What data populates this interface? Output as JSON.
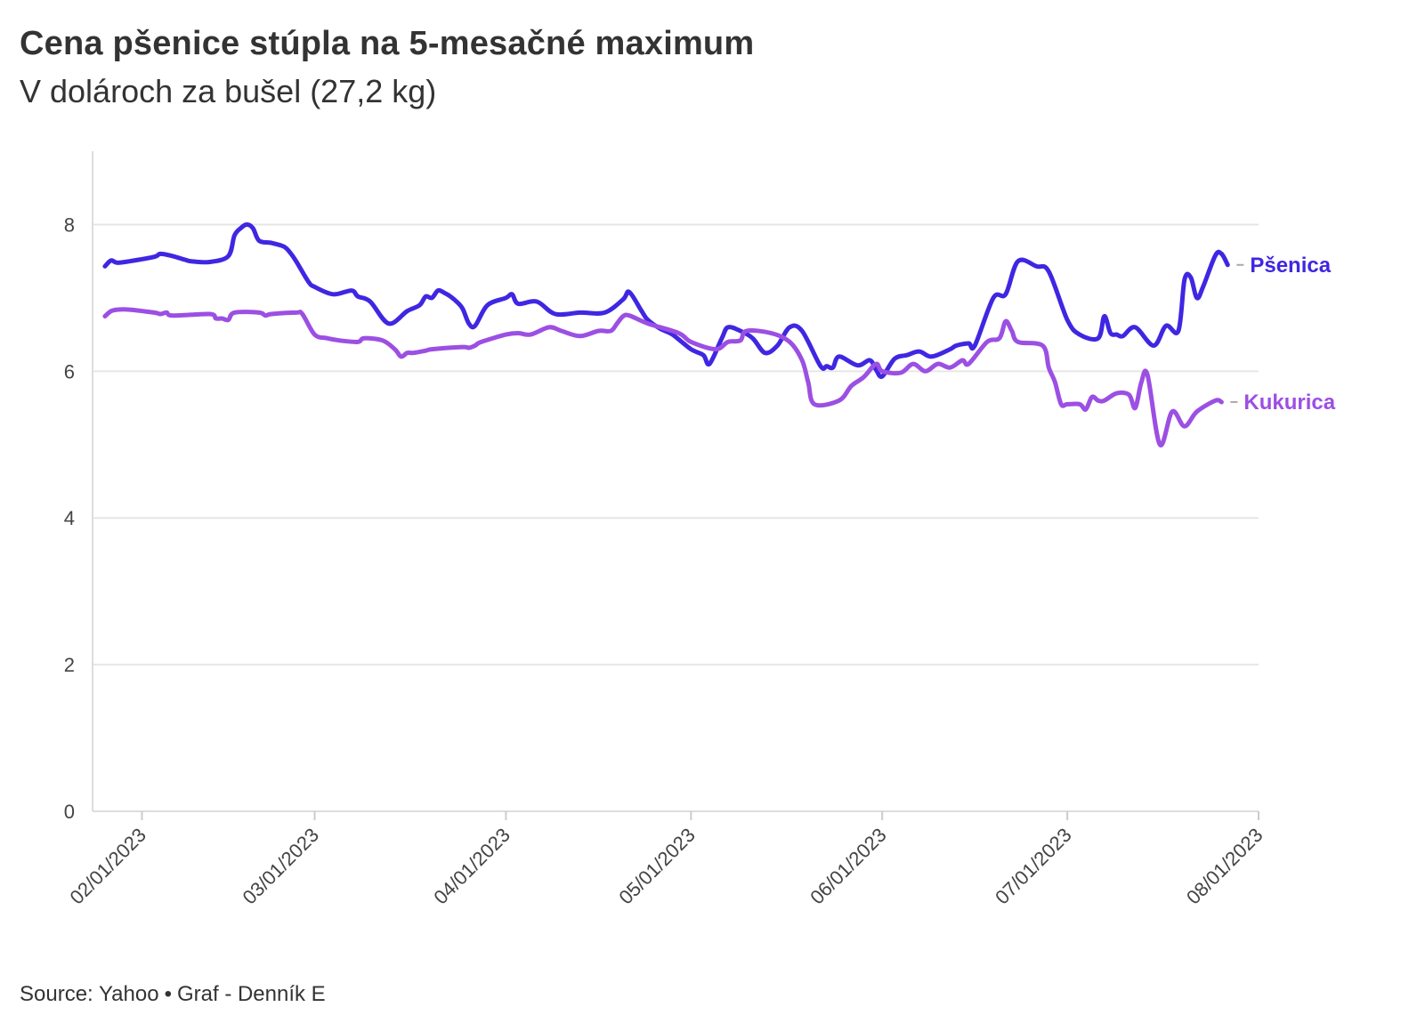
{
  "title": "Cena pšenice stúpla na 5-mesačné maximum",
  "subtitle": "V dolároch za bušel (27,2 kg)",
  "source": {
    "text": "Source: Yahoo",
    "separator": "•",
    "credit": "Graf - Denník E"
  },
  "chart_data": {
    "type": "line",
    "title": "Cena pšenice stúpla na 5-mesačné maximum",
    "subtitle": "V dolároch za bušel (27,2 kg)",
    "xlabel": "",
    "ylabel": "",
    "xlim": [
      "2023-01-24",
      "2023-08-01"
    ],
    "ylim": [
      0,
      9
    ],
    "yticks": [
      0,
      2,
      4,
      6,
      8
    ],
    "xticks": [
      "02/01/2023",
      "03/01/2023",
      "04/01/2023",
      "05/01/2023",
      "06/01/2023",
      "07/01/2023",
      "08/01/2023"
    ],
    "grid": true,
    "legend": "line-end labels",
    "series": [
      {
        "name": "Pšenica",
        "color": "#3f27e2",
        "x": [
          "2023-01-26",
          "2023-01-27",
          "2023-01-28",
          "2023-01-30",
          "2023-02-03",
          "2023-02-04",
          "2023-02-06",
          "2023-02-08",
          "2023-02-09",
          "2023-02-12",
          "2023-02-15",
          "2023-02-16",
          "2023-02-17",
          "2023-02-18",
          "2023-02-19",
          "2023-02-20",
          "2023-02-22",
          "2023-02-24",
          "2023-02-25",
          "2023-02-26",
          "2023-02-28",
          "2023-03-01",
          "2023-03-04",
          "2023-03-07",
          "2023-03-08",
          "2023-03-10",
          "2023-03-13",
          "2023-03-16",
          "2023-03-18",
          "2023-03-19",
          "2023-03-20",
          "2023-03-21",
          "2023-03-22",
          "2023-03-23",
          "2023-03-24",
          "2023-03-25",
          "2023-03-26",
          "2023-03-27",
          "2023-03-29",
          "2023-04-01",
          "2023-04-02",
          "2023-04-03",
          "2023-04-06",
          "2023-04-09",
          "2023-04-13",
          "2023-04-17",
          "2023-04-20",
          "2023-04-21",
          "2023-04-23",
          "2023-04-24",
          "2023-04-26",
          "2023-04-28",
          "2023-05-01",
          "2023-05-03",
          "2023-05-04",
          "2023-05-06",
          "2023-05-07",
          "2023-05-09",
          "2023-05-11",
          "2023-05-13",
          "2023-05-15",
          "2023-05-17",
          "2023-05-19",
          "2023-05-22",
          "2023-05-23",
          "2023-05-24",
          "2023-05-25",
          "2023-05-28",
          "2023-05-30",
          "2023-05-31",
          "2023-06-01",
          "2023-06-03",
          "2023-06-05",
          "2023-06-07",
          "2023-06-09",
          "2023-06-12",
          "2023-06-13",
          "2023-06-15",
          "2023-06-16",
          "2023-06-19",
          "2023-06-21",
          "2023-06-23",
          "2023-06-26",
          "2023-06-28",
          "2023-07-01",
          "2023-07-03",
          "2023-07-06",
          "2023-07-07",
          "2023-07-08",
          "2023-07-09",
          "2023-07-10",
          "2023-07-12",
          "2023-07-15",
          "2023-07-17",
          "2023-07-19",
          "2023-07-20",
          "2023-07-21",
          "2023-07-22",
          "2023-07-23",
          "2023-07-25",
          "2023-07-26",
          "2023-07-27"
        ],
        "values": [
          7.43,
          7.51,
          7.48,
          7.5,
          7.56,
          7.6,
          7.57,
          7.52,
          7.5,
          7.49,
          7.57,
          7.85,
          7.95,
          8.0,
          7.95,
          7.78,
          7.75,
          7.7,
          7.62,
          7.5,
          7.22,
          7.15,
          7.05,
          7.1,
          7.02,
          6.95,
          6.65,
          6.82,
          6.9,
          7.02,
          7.0,
          7.1,
          7.07,
          7.02,
          6.95,
          6.85,
          6.65,
          6.62,
          6.9,
          7.0,
          7.05,
          6.92,
          6.95,
          6.78,
          6.8,
          6.8,
          6.98,
          7.08,
          6.82,
          6.7,
          6.58,
          6.5,
          6.3,
          6.22,
          6.1,
          6.45,
          6.6,
          6.55,
          6.45,
          6.25,
          6.35,
          6.6,
          6.55,
          6.07,
          6.07,
          6.05,
          6.2,
          6.08,
          6.15,
          6.02,
          5.93,
          6.17,
          6.22,
          6.27,
          6.2,
          6.3,
          6.35,
          6.38,
          6.35,
          7.0,
          7.05,
          7.5,
          7.43,
          7.36,
          6.7,
          6.5,
          6.45,
          6.75,
          6.52,
          6.5,
          6.48,
          6.6,
          6.35,
          6.62,
          6.55,
          7.25,
          7.28,
          7.0,
          7.15,
          7.58,
          7.6,
          7.45
        ]
      },
      {
        "name": "Kukurica",
        "color": "#9c4fe3",
        "x": [
          "2023-01-26",
          "2023-01-27",
          "2023-01-28",
          "2023-01-30",
          "2023-02-03",
          "2023-02-04",
          "2023-02-05",
          "2023-02-06",
          "2023-02-12",
          "2023-02-13",
          "2023-02-14",
          "2023-02-15",
          "2023-02-16",
          "2023-02-20",
          "2023-02-21",
          "2023-02-22",
          "2023-02-26",
          "2023-02-27",
          "2023-03-01",
          "2023-03-03",
          "2023-03-05",
          "2023-03-08",
          "2023-03-09",
          "2023-03-12",
          "2023-03-14",
          "2023-03-15",
          "2023-03-16",
          "2023-03-17",
          "2023-03-19",
          "2023-03-20",
          "2023-03-25",
          "2023-03-26",
          "2023-03-27",
          "2023-03-28",
          "2023-04-01",
          "2023-04-03",
          "2023-04-05",
          "2023-04-08",
          "2023-04-10",
          "2023-04-13",
          "2023-04-16",
          "2023-04-18",
          "2023-04-19",
          "2023-04-20",
          "2023-04-21",
          "2023-04-24",
          "2023-04-29",
          "2023-05-01",
          "2023-05-05",
          "2023-05-07",
          "2023-05-09",
          "2023-05-10",
          "2023-05-14",
          "2023-05-17",
          "2023-05-19",
          "2023-05-20",
          "2023-05-21",
          "2023-05-25",
          "2023-05-27",
          "2023-05-29",
          "2023-05-31",
          "2023-06-01",
          "2023-06-04",
          "2023-06-06",
          "2023-06-08",
          "2023-06-10",
          "2023-06-12",
          "2023-06-14",
          "2023-06-15",
          "2023-06-18",
          "2023-06-20",
          "2023-06-21",
          "2023-06-22",
          "2023-06-23",
          "2023-06-27",
          "2023-06-28",
          "2023-06-29",
          "2023-06-30",
          "2023-07-01",
          "2023-07-03",
          "2023-07-04",
          "2023-07-05",
          "2023-07-06",
          "2023-07-07",
          "2023-07-09",
          "2023-07-11",
          "2023-07-12",
          "2023-07-13",
          "2023-07-14",
          "2023-07-16",
          "2023-07-18",
          "2023-07-20",
          "2023-07-22",
          "2023-07-25",
          "2023-07-26"
        ],
        "values": [
          6.75,
          6.82,
          6.84,
          6.84,
          6.8,
          6.78,
          6.8,
          6.76,
          6.78,
          6.72,
          6.72,
          6.7,
          6.8,
          6.8,
          6.76,
          6.78,
          6.8,
          6.78,
          6.5,
          6.45,
          6.42,
          6.4,
          6.45,
          6.42,
          6.3,
          6.2,
          6.25,
          6.25,
          6.28,
          6.3,
          6.33,
          6.32,
          6.35,
          6.4,
          6.5,
          6.52,
          6.5,
          6.6,
          6.55,
          6.48,
          6.55,
          6.55,
          6.65,
          6.75,
          6.76,
          6.65,
          6.52,
          6.4,
          6.3,
          6.4,
          6.42,
          6.55,
          6.52,
          6.4,
          6.15,
          5.85,
          5.55,
          5.6,
          5.8,
          5.92,
          6.1,
          6.0,
          5.98,
          6.1,
          6.0,
          6.1,
          6.05,
          6.15,
          6.1,
          6.4,
          6.45,
          6.68,
          6.55,
          6.4,
          6.35,
          6.05,
          5.85,
          5.55,
          5.55,
          5.55,
          5.48,
          5.65,
          5.6,
          5.6,
          5.7,
          5.68,
          5.5,
          5.85,
          5.95,
          5.0,
          5.45,
          5.25,
          5.45,
          5.6,
          5.58
        ]
      }
    ]
  }
}
